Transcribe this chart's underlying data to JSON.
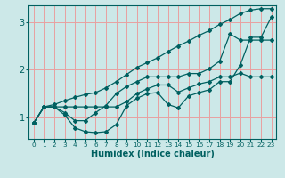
{
  "title": "",
  "xlabel": "Humidex (Indice chaleur)",
  "ylabel": "",
  "bg_color": "#cce8e8",
  "grid_color": "#e8a0a0",
  "line_color": "#006060",
  "xlim": [
    -0.5,
    23.5
  ],
  "ylim": [
    0.55,
    3.35
  ],
  "xticks": [
    0,
    1,
    2,
    3,
    4,
    5,
    6,
    7,
    8,
    9,
    10,
    11,
    12,
    13,
    14,
    15,
    16,
    17,
    18,
    19,
    20,
    21,
    22,
    23
  ],
  "yticks": [
    1,
    2,
    3
  ],
  "series": [
    [
      0.88,
      1.22,
      1.22,
      1.05,
      0.78,
      0.7,
      0.68,
      0.7,
      0.85,
      1.25,
      1.4,
      1.5,
      1.52,
      1.27,
      1.2,
      1.45,
      1.52,
      1.58,
      1.75,
      1.75,
      2.1,
      2.68,
      2.68,
      3.1
    ],
    [
      0.88,
      1.22,
      1.22,
      1.1,
      0.93,
      0.93,
      1.1,
      1.25,
      1.5,
      1.65,
      1.75,
      1.85,
      1.85,
      1.85,
      1.85,
      1.92,
      1.92,
      2.02,
      2.18,
      2.75,
      2.62,
      2.62,
      2.62,
      2.62
    ],
    [
      0.88,
      1.22,
      1.22,
      1.22,
      1.22,
      1.22,
      1.22,
      1.22,
      1.22,
      1.33,
      1.5,
      1.6,
      1.68,
      1.68,
      1.53,
      1.62,
      1.7,
      1.75,
      1.85,
      1.85,
      1.93,
      1.85,
      1.85,
      1.85
    ],
    [
      0.88,
      1.22,
      1.27,
      1.35,
      1.42,
      1.48,
      1.52,
      1.62,
      1.75,
      1.9,
      2.05,
      2.15,
      2.25,
      2.38,
      2.5,
      2.6,
      2.72,
      2.82,
      2.95,
      3.05,
      3.18,
      3.25,
      3.28,
      3.28
    ]
  ]
}
